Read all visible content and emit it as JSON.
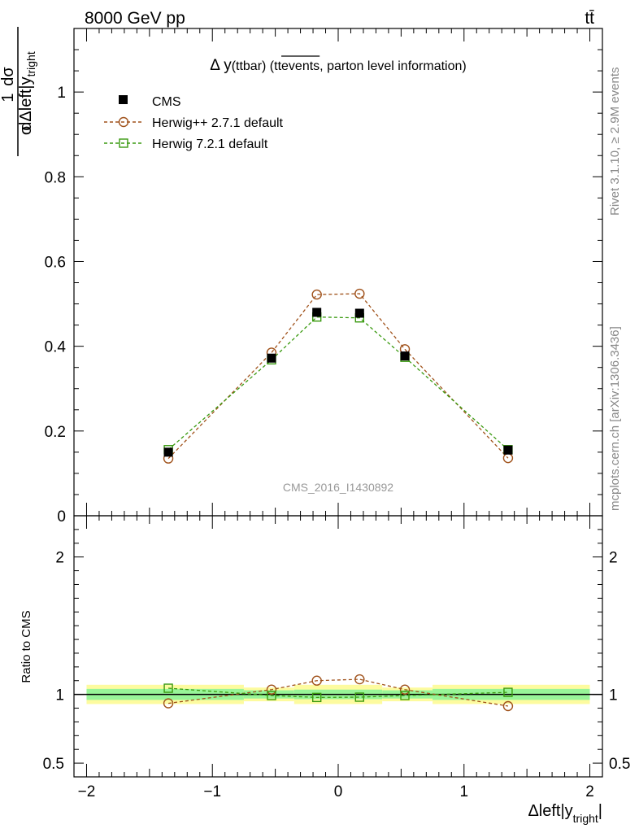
{
  "header": {
    "beam_label": "8000 GeV pp",
    "process_label": "tt̄",
    "side_top": "Rivet 3.1.10, ≥ 2.9M events",
    "side_bottom": "mcplots.cern.ch [arXiv:1306.3436]"
  },
  "chart_data": [
    {
      "type": "line",
      "panel": "main",
      "title_main": "Δ y",
      "title_paren": "(ttbar) (tt",
      "title_over": "events,",
      "title_rest": " parton level information)",
      "ylabel_num": "1",
      "ylabel_den": "σ",
      "ylabel_frac_num": "dσ",
      "ylabel_frac_den": "dΔleft|y",
      "ylabel_sub": "tright",
      "ylim": [
        0,
        1.15
      ],
      "xlim": [
        -2.1,
        2.1
      ],
      "yticks": [
        "0",
        "0.2",
        "0.4",
        "0.6",
        "0.8",
        "1"
      ],
      "watermark": "CMS_2016_I1430892",
      "x": [
        -1.35,
        -0.53,
        -0.17,
        0.17,
        0.53,
        1.35
      ],
      "series": [
        {
          "name": "CMS",
          "color": "#000000",
          "marker": "filled-square",
          "values": [
            0.15,
            0.372,
            0.48,
            0.478,
            0.377,
            0.155
          ]
        },
        {
          "name": "Herwig++ 2.7.1 default",
          "color": "#a0521b",
          "marker": "open-circle",
          "dashed": true,
          "values": [
            0.135,
            0.385,
            0.522,
            0.524,
            0.393,
            0.136
          ]
        },
        {
          "name": "Herwig 7.2.1 default",
          "color": "#3a9a10",
          "marker": "open-square",
          "dashed": true,
          "values": [
            0.156,
            0.368,
            0.469,
            0.467,
            0.374,
            0.156
          ]
        }
      ]
    },
    {
      "type": "line",
      "panel": "ratio",
      "ylabel": "Ratio to CMS",
      "ylim": [
        0.4,
        2.3
      ],
      "yticks": [
        "0.5",
        "1",
        "2"
      ],
      "xlabel_main": "Δleft|y",
      "xlabel_sub": "tright",
      "xlabel_end": "|",
      "xticks": [
        "−2",
        "−1",
        "0",
        "1",
        "2"
      ],
      "x": [
        -1.35,
        -0.53,
        -0.17,
        0.17,
        0.53,
        1.35
      ],
      "bins": [
        [
          -2.0,
          -0.75
        ],
        [
          -0.75,
          -0.35
        ],
        [
          -0.35,
          0.0
        ],
        [
          0.0,
          0.35
        ],
        [
          0.35,
          0.75
        ],
        [
          0.75,
          2.0
        ]
      ],
      "band_inner": [
        0.04,
        0.03,
        0.035,
        0.035,
        0.03,
        0.04
      ],
      "band_outer": [
        0.07,
        0.05,
        0.07,
        0.07,
        0.05,
        0.07
      ],
      "band_inner_color": "#98f598",
      "band_outer_color": "#fdfb9f",
      "series": [
        {
          "name": "Herwig++ 2.7.1 default",
          "color": "#a0521b",
          "marker": "open-circle",
          "values": [
            0.935,
            1.035,
            1.1,
            1.11,
            1.035,
            0.915
          ]
        },
        {
          "name": "Herwig 7.2.1 default",
          "color": "#3a9a10",
          "marker": "open-square",
          "values": [
            1.045,
            0.992,
            0.978,
            0.98,
            0.992,
            1.015
          ]
        }
      ]
    }
  ]
}
